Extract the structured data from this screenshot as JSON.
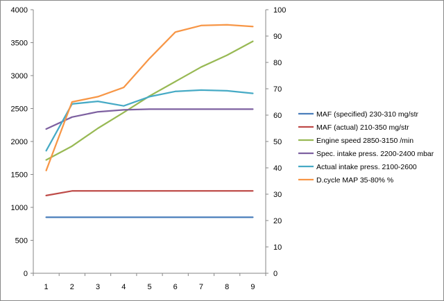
{
  "chart_data": {
    "type": "line",
    "title": "",
    "xlabel": "",
    "ylabel": "",
    "grid": false,
    "legend_position": "right",
    "categories": [
      "1",
      "2",
      "3",
      "4",
      "5",
      "6",
      "7",
      "8",
      "9"
    ],
    "y_left": {
      "ylim": [
        0,
        4000
      ],
      "ticks": [
        "0",
        "500",
        "1000",
        "1500",
        "2000",
        "2500",
        "3000",
        "3500",
        "4000"
      ]
    },
    "y_right": {
      "ylim": [
        0,
        100
      ],
      "ticks": [
        "0",
        "10",
        "20",
        "30",
        "40",
        "50",
        "60",
        "70",
        "80",
        "90",
        "100"
      ]
    },
    "series": [
      {
        "name": "MAF (specified) 230-310  mg/str",
        "axis": "left",
        "color": "#4a7ebb",
        "values": [
          850,
          850,
          850,
          850,
          850,
          850,
          850,
          850,
          850
        ]
      },
      {
        "name": "MAF (actual) 210-350  mg/str",
        "axis": "left",
        "color": "#be4b48",
        "values": [
          1180,
          1250,
          1250,
          1250,
          1250,
          1250,
          1250,
          1250,
          1250
        ]
      },
      {
        "name": "Engine speed 2850-3150  /min",
        "axis": "left",
        "color": "#98b954",
        "values": [
          1720,
          1930,
          2200,
          2440,
          2690,
          2910,
          3130,
          3310,
          3520
        ]
      },
      {
        "name": "Spec. intake press.  2200-2400  mbar",
        "axis": "left",
        "color": "#7d60a0",
        "values": [
          2190,
          2370,
          2450,
          2480,
          2490,
          2490,
          2490,
          2490,
          2490
        ]
      },
      {
        "name": "Actual intake press.  2100-2600",
        "axis": "left",
        "color": "#46aac5",
        "values": [
          1860,
          2570,
          2610,
          2540,
          2680,
          2760,
          2780,
          2770,
          2730
        ]
      },
      {
        "name": "D.cycle MAP 35-80%  %",
        "axis": "right",
        "color": "#f79646",
        "values": [
          39,
          65,
          67,
          70.5,
          81.5,
          91.5,
          94,
          94.3,
          93.6
        ]
      }
    ]
  }
}
